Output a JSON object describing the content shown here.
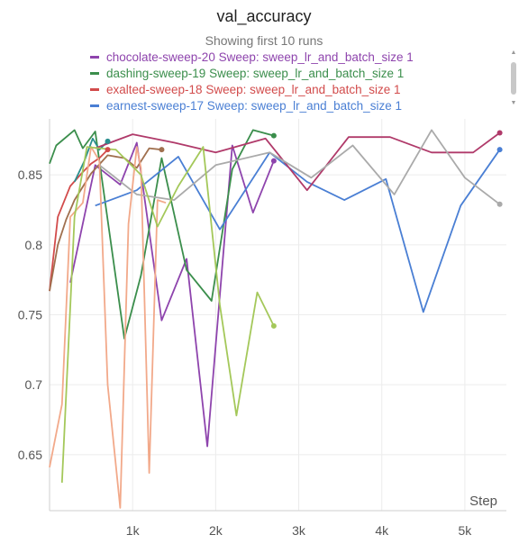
{
  "chart_data": {
    "type": "line",
    "title": "val_accuracy",
    "subtitle": "Showing first 10 runs",
    "xlabel": "Step",
    "ylabel": "",
    "xlim": [
      0,
      5500
    ],
    "ylim": [
      0.61,
      0.89
    ],
    "x_ticks": [
      1000,
      2000,
      3000,
      4000,
      5000
    ],
    "x_tick_labels": [
      "1k",
      "2k",
      "3k",
      "4k",
      "5k"
    ],
    "y_ticks": [
      0.65,
      0.7,
      0.75,
      0.8,
      0.85
    ],
    "y_tick_labels": [
      "0.65",
      "0.7",
      "0.75",
      "0.8",
      "0.85"
    ],
    "grid": true,
    "legend": [
      {
        "label": "chocolate-sweep-20 Sweep: sweep_lr_and_batch_size 1",
        "color": "#8e44ad"
      },
      {
        "label": "dashing-sweep-19 Sweep: sweep_lr_and_batch_size 1",
        "color": "#3b8e4c"
      },
      {
        "label": "exalted-sweep-18 Sweep: sweep_lr_and_batch_size 1",
        "color": "#d24b4b"
      },
      {
        "label": "earnest-sweep-17 Sweep: sweep_lr_and_batch_size 1",
        "color": "#4a7fd4"
      }
    ],
    "series": [
      {
        "color": "#8e44ad",
        "end_marker": true,
        "x": [
          250,
          550,
          850,
          1050,
          1350,
          1650,
          1900,
          2200,
          2450,
          2700
        ],
        "y": [
          0.773,
          0.857,
          0.843,
          0.873,
          0.746,
          0.79,
          0.656,
          0.871,
          0.823,
          0.86
        ]
      },
      {
        "color": "#3b8e4c",
        "end_marker": true,
        "x": [
          0,
          80,
          300,
          400,
          550,
          900,
          1100,
          1350,
          1650,
          1950,
          2200,
          2450,
          2700
        ],
        "y": [
          0.858,
          0.871,
          0.882,
          0.869,
          0.881,
          0.733,
          0.778,
          0.862,
          0.782,
          0.76,
          0.854,
          0.882,
          0.878
        ]
      },
      {
        "color": "#d24b4b",
        "end_marker": true,
        "x": [
          0,
          100,
          250,
          400,
          500,
          600,
          700
        ],
        "y": [
          0.767,
          0.82,
          0.842,
          0.852,
          0.858,
          0.862,
          0.868
        ]
      },
      {
        "color": "#4a7fd4",
        "end_marker": true,
        "x": [
          550,
          1050,
          1550,
          2050,
          2650,
          3100,
          3550,
          4050,
          4500,
          4950,
          5420
        ],
        "y": [
          0.828,
          0.839,
          0.863,
          0.811,
          0.866,
          0.845,
          0.832,
          0.847,
          0.752,
          0.828,
          0.868
        ]
      },
      {
        "color": "#2a8f8f",
        "end_marker": true,
        "x": [
          300,
          420,
          520,
          600,
          700
        ],
        "y": [
          0.845,
          0.86,
          0.876,
          0.868,
          0.874
        ]
      },
      {
        "color": "#b03a6a",
        "end_marker": true,
        "x": [
          550,
          1000,
          1500,
          2000,
          2600,
          3100,
          3600,
          4100,
          4600,
          5100,
          5420
        ],
        "y": [
          0.869,
          0.879,
          0.873,
          0.866,
          0.876,
          0.839,
          0.877,
          0.877,
          0.866,
          0.866,
          0.88
        ]
      },
      {
        "color": "#aaaaaa",
        "end_marker": true,
        "x": [
          600,
          1050,
          1500,
          2000,
          2650,
          3150,
          3650,
          4150,
          4600,
          5000,
          5420
        ],
        "y": [
          0.857,
          0.836,
          0.832,
          0.857,
          0.866,
          0.848,
          0.871,
          0.836,
          0.882,
          0.848,
          0.829
        ]
      },
      {
        "color": "#a0704f",
        "end_marker": true,
        "x": [
          0,
          100,
          200,
          300,
          500,
          700,
          900,
          1050,
          1200,
          1350
        ],
        "y": [
          0.767,
          0.8,
          0.818,
          0.832,
          0.851,
          0.864,
          0.862,
          0.855,
          0.869,
          0.868
        ]
      },
      {
        "color": "#f2a98a",
        "end_marker": false,
        "x": [
          0,
          150,
          250,
          400,
          500,
          600,
          700,
          850,
          950,
          1050,
          1100,
          1200,
          1300,
          1400
        ],
        "y": [
          0.641,
          0.686,
          0.82,
          0.83,
          0.87,
          0.86,
          0.7,
          0.612,
          0.815,
          0.87,
          0.855,
          0.637,
          0.832,
          0.83
        ]
      },
      {
        "color": "#a4c85a",
        "end_marker": true,
        "x": [
          150,
          300,
          450,
          600,
          800,
          1100,
          1300,
          1550,
          1850,
          2050,
          2250,
          2500,
          2700
        ],
        "y": [
          0.63,
          0.82,
          0.87,
          0.869,
          0.868,
          0.85,
          0.813,
          0.842,
          0.87,
          0.757,
          0.678,
          0.766,
          0.742
        ]
      }
    ]
  }
}
